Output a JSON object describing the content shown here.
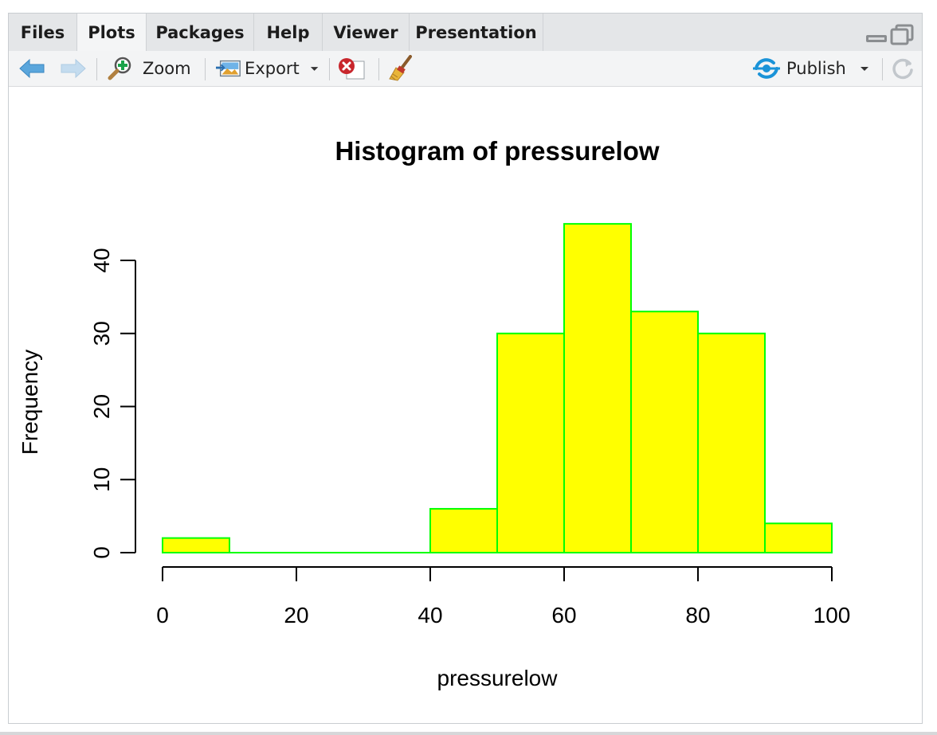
{
  "tabs": [
    {
      "label": "Files",
      "active": false
    },
    {
      "label": "Plots",
      "active": true
    },
    {
      "label": "Packages",
      "active": false
    },
    {
      "label": "Help",
      "active": false
    },
    {
      "label": "Viewer",
      "active": false
    },
    {
      "label": "Presentation",
      "active": false
    }
  ],
  "toolbar": {
    "zoom_label": "Zoom",
    "export_label": "Export",
    "publish_label": "Publish",
    "icons": [
      "back-arrow-icon",
      "forward-arrow-icon",
      "zoom-icon",
      "export-icon",
      "remove-plot-icon",
      "clear-all-icon",
      "publish-icon",
      "refresh-icon"
    ]
  },
  "colors": {
    "bar_fill": "#ffff00",
    "bar_border": "#00ff00",
    "publish_accent": "#1a93d8",
    "back_arrow": "#4a9bd6"
  },
  "chart_data": {
    "type": "bar",
    "title": "Histogram of pressurelow",
    "xlabel": "pressurelow",
    "ylabel": "Frequency",
    "bins": [
      [
        0,
        10
      ],
      [
        10,
        20
      ],
      [
        20,
        30
      ],
      [
        30,
        40
      ],
      [
        40,
        50
      ],
      [
        50,
        60
      ],
      [
        60,
        70
      ],
      [
        70,
        80
      ],
      [
        80,
        90
      ],
      [
        90,
        100
      ]
    ],
    "values": [
      2,
      0,
      0,
      0,
      6,
      30,
      45,
      33,
      30,
      4
    ],
    "xlim": [
      0,
      100
    ],
    "ylim": [
      0,
      45
    ],
    "xticks": [
      "0",
      "20",
      "40",
      "60",
      "80",
      "100"
    ],
    "yticks": [
      "0",
      "10",
      "20",
      "30",
      "40"
    ]
  }
}
